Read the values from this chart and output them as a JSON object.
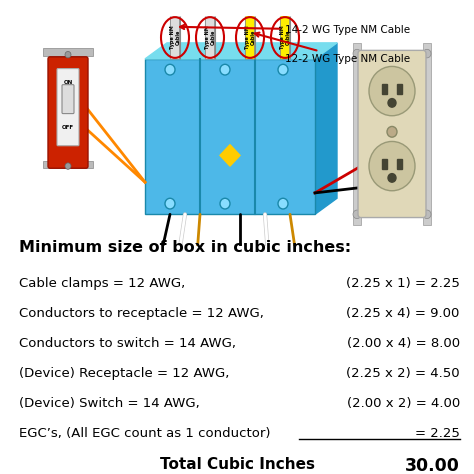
{
  "bg_color": "#ffffff",
  "title": "Minimum size of box in cubic inches:",
  "title_fontsize": 11.5,
  "title_bold": true,
  "rows": [
    {
      "left": "Cable clamps = 12 AWG,",
      "right": "(2.25 x 1) = 2.25"
    },
    {
      "left": "Conductors to receptacle = 12 AWG,",
      "right": "(2.25 x 4) = 9.00"
    },
    {
      "left": "Conductors to switch = 14 AWG,",
      "right": "(2.00 x 4) = 8.00"
    },
    {
      "left": "(Device) Receptacle = 12 AWG,",
      "right": "(2.25 x 2) = 4.50"
    },
    {
      "left": "(Device) Switch = 14 AWG,",
      "right": "(2.00 x 2) = 4.00"
    },
    {
      "left": "EGC’s, (All EGC count as 1 conductor)",
      "right": "= 2.25"
    }
  ],
  "total_left": "Total Cubic Inches",
  "total_right": "30.00",
  "row_fontsize": 9.5,
  "total_fontsize": 11,
  "underline_egc": true
}
